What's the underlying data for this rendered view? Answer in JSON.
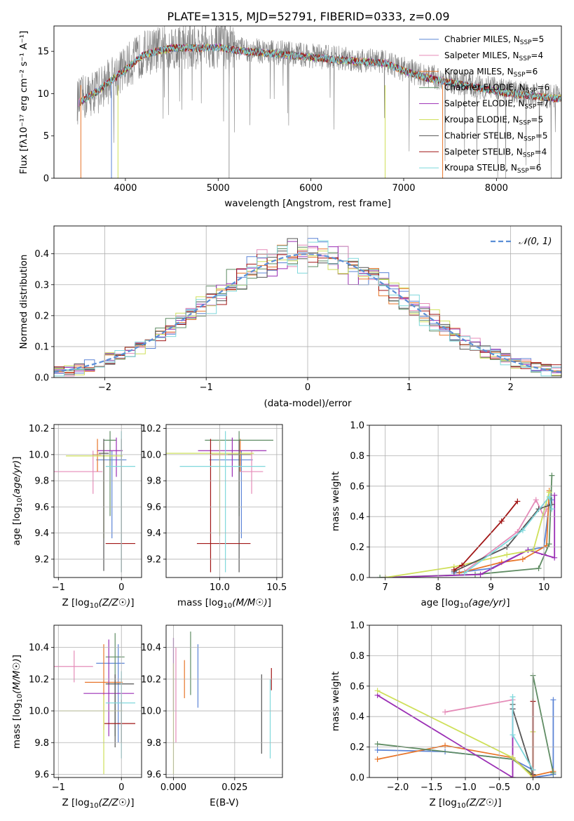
{
  "colors": [
    "#5b84d6",
    "#e58bb8",
    "#e8762b",
    "#5f8c63",
    "#9b2fb5",
    "#cfe05a",
    "#555555",
    "#a11616",
    "#7fd8dc"
  ],
  "chart_data": [
    {
      "id": "spectrum",
      "type": "line",
      "title": "PLATE=1315, MJD=52791, FIBERID=0333, z=0.09",
      "xlabel": "wavelength [Angstrom, rest frame]",
      "ylabel": "Flux [f_λ 10^-17 erg cm^-2 s^-1 A^-1]",
      "xlim": [
        3230,
        8700
      ],
      "ylim": [
        0,
        18
      ],
      "xticks": [
        4000,
        5000,
        6000,
        7000,
        8000
      ],
      "yticks": [
        0,
        5,
        10,
        15
      ],
      "grid": false,
      "legend_position": "right",
      "series": [
        {
          "name": "Chabrier MILES, N_SSP=5"
        },
        {
          "name": "Salpeter MILES, N_SSP=4"
        },
        {
          "name": "Kroupa MILES, N_SSP=6"
        },
        {
          "name": "Chabrier ELODIE, N_SSP=6"
        },
        {
          "name": "Salpeter ELODIE, N_SSP=7"
        },
        {
          "name": "Kroupa ELODIE, N_SSP=5"
        },
        {
          "name": "Chabrier STELIB, N_SSP=5"
        },
        {
          "name": "Salpeter STELIB, N_SSP=4"
        },
        {
          "name": "Kroupa STELIB, N_SSP=6"
        }
      ],
      "continuum": {
        "x": [
          3480,
          3700,
          3900,
          4050,
          4200,
          4500,
          4800,
          5000,
          5200,
          5500,
          5800,
          6000,
          6200,
          6500,
          6800,
          7000,
          7200,
          7500,
          7800,
          8100,
          8400,
          8700
        ],
        "y": [
          9.0,
          10.5,
          12.2,
          13.5,
          14.8,
          15.6,
          15.6,
          15.7,
          15.3,
          15.0,
          14.7,
          14.5,
          14.3,
          14.0,
          13.8,
          12.9,
          12.2,
          11.5,
          10.9,
          10.3,
          9.9,
          9.6
        ]
      }
    },
    {
      "id": "residuals",
      "type": "histogram",
      "xlabel": "(data-model)/error",
      "ylabel": "Normed distribution",
      "xlim": [
        -2.5,
        2.5
      ],
      "ylim": [
        0,
        0.49
      ],
      "xticks": [
        -2,
        -1,
        0,
        1,
        2
      ],
      "yticks": [
        0.0,
        0.1,
        0.2,
        0.3,
        0.4
      ],
      "grid": true,
      "legend": "𝒩(0, 1)",
      "legend_position": "top-right",
      "bin_width": 0.1
    },
    {
      "id": "z-vs-age",
      "type": "scatter",
      "xlabel": "Z [log10(Z/Z☉)]",
      "ylabel": "age [log10(age/yr)]",
      "xlim": [
        -1.07,
        0.32
      ],
      "ylim": [
        9.06,
        10.23
      ],
      "xticks": [
        -1,
        0
      ],
      "yticks": [
        9.2,
        9.4,
        9.6,
        9.8,
        10.0,
        10.2
      ],
      "grid": true,
      "points": [
        {
          "x": -0.15,
          "y": 9.96,
          "xerr": [
            0.25,
            0.23
          ],
          "yerr": [
            0.6,
            0.07
          ]
        },
        {
          "x": -0.45,
          "y": 9.87,
          "xerr": [
            0.65,
            0.15
          ],
          "yerr": [
            0.17,
            0.16
          ]
        },
        {
          "x": -0.38,
          "y": 10.0,
          "xerr": [
            0.08,
            0.06
          ],
          "yerr": [
            0.13,
            0.12
          ]
        },
        {
          "x": -0.18,
          "y": 10.11,
          "xerr": [
            0.1,
            0.1
          ],
          "yerr": [
            0.58,
            0.07
          ]
        },
        {
          "x": -0.08,
          "y": 10.03,
          "xerr": [
            0.3,
            0.1
          ],
          "yerr": [
            0.2,
            0.1
          ]
        },
        {
          "x": -0.28,
          "y": 9.99,
          "xerr": [
            0.6,
            0.3
          ],
          "yerr": [
            0.63,
            0.1
          ]
        },
        {
          "x": -0.28,
          "y": 10.01,
          "xerr": [
            0.08,
            0.08
          ],
          "yerr": [
            0.9,
            0.11
          ]
        },
        {
          "x": 0.0,
          "y": 9.32,
          "xerr": [
            0.25,
            0.22
          ],
          "yerr": [
            0.22,
            0.8
          ]
        },
        {
          "x": 0.0,
          "y": 9.91,
          "xerr": [
            0.25,
            0.22
          ],
          "yerr": [
            0.81,
            0.27
          ]
        }
      ]
    },
    {
      "id": "mass-vs-age",
      "type": "scatter",
      "xlabel": "mass [log10(M/M☉)]",
      "ylabel": "",
      "xlim": [
        9.53,
        10.55
      ],
      "ylim": [
        9.06,
        10.23
      ],
      "xticks": [
        10.0,
        10.5
      ],
      "yticks": [
        9.2,
        9.4,
        9.6,
        9.8,
        10.0,
        10.2
      ],
      "grid": true,
      "points": [
        {
          "x": 10.19,
          "y": 9.96,
          "xerr": [
            0.28,
            0.1
          ],
          "yerr": [
            0.6,
            0.07
          ]
        },
        {
          "x": 10.28,
          "y": 9.87,
          "xerr": [
            0.1,
            0.1
          ],
          "yerr": [
            0.17,
            0.16
          ]
        },
        {
          "x": 10.18,
          "y": 10.0,
          "xerr": [
            0.25,
            0.1
          ],
          "yerr": [
            0.13,
            0.12
          ]
        },
        {
          "x": 10.17,
          "y": 10.11,
          "xerr": [
            0.3,
            0.3
          ],
          "yerr": [
            0.58,
            0.07
          ]
        },
        {
          "x": 10.11,
          "y": 10.03,
          "xerr": [
            0.3,
            0.3
          ],
          "yerr": [
            0.2,
            0.1
          ]
        },
        {
          "x": 10.0,
          "y": 10.01,
          "xerr": [
            0.6,
            0.3
          ],
          "yerr": [
            0.63,
            0.1
          ]
        },
        {
          "x": 10.17,
          "y": 10.0,
          "xerr": [
            0.1,
            0.1
          ],
          "yerr": [
            0.9,
            0.11
          ]
        },
        {
          "x": 9.92,
          "y": 9.32,
          "xerr": [
            0.12,
            0.35
          ],
          "yerr": [
            0.22,
            0.8
          ]
        },
        {
          "x": 10.05,
          "y": 9.91,
          "xerr": [
            0.4,
            0.35
          ],
          "yerr": [
            0.81,
            0.27
          ]
        }
      ]
    },
    {
      "id": "age-vs-weight",
      "type": "line",
      "xlabel": "age  [log10(age/yr)]",
      "ylabel": "mass weight",
      "xlim": [
        6.7,
        10.33
      ],
      "ylim": [
        0,
        1
      ],
      "xticks": [
        7,
        8,
        9,
        10
      ],
      "yticks": [
        0.0,
        0.2,
        0.4,
        0.6,
        0.8,
        1.0
      ],
      "grid": true,
      "series": [
        {
          "x": [
            8.3,
            9.0,
            9.7,
            10.0,
            10.1,
            10.15
          ],
          "y": [
            0.03,
            0.06,
            0.18,
            0.2,
            0.48,
            0.51
          ]
        },
        {
          "x": [
            8.5,
            9.5,
            9.85,
            10.0,
            10.05
          ],
          "y": [
            0.04,
            0.3,
            0.51,
            0.4,
            0.45
          ]
        },
        {
          "x": [
            8.4,
            9.2,
            9.6,
            10.05,
            10.1
          ],
          "y": [
            0.03,
            0.1,
            0.12,
            0.21,
            0.57
          ]
        },
        {
          "x": [
            6.9,
            8.7,
            9.9,
            10.1,
            10.15
          ],
          "y": [
            0.0,
            0.02,
            0.06,
            0.22,
            0.67
          ]
        },
        {
          "x": [
            7.0,
            8.8,
            9.7,
            10.0,
            10.2,
            10.2
          ],
          "y": [
            0.0,
            0.02,
            0.18,
            0.15,
            0.13,
            0.54
          ]
        },
        {
          "x": [
            7.0,
            8.3,
            9.3,
            9.8,
            10.1
          ],
          "y": [
            0.0,
            0.07,
            0.15,
            0.18,
            0.56
          ]
        },
        {
          "x": [
            8.3,
            9.3,
            9.9,
            10.15
          ],
          "y": [
            0.04,
            0.2,
            0.45,
            0.48
          ]
        },
        {
          "x": [
            8.3,
            8.45,
            9.2,
            9.5
          ],
          "y": [
            0.05,
            0.08,
            0.37,
            0.5
          ]
        },
        {
          "x": [
            8.5,
            9.6,
            10.1,
            10.15
          ],
          "y": [
            0.03,
            0.31,
            0.53,
            0.45
          ]
        }
      ]
    },
    {
      "id": "z-vs-mass",
      "type": "scatter",
      "xlabel": "Z [log10(Z/Z☉)]",
      "ylabel": "mass [log10(M/M☉)]",
      "xlim": [
        -1.07,
        0.32
      ],
      "ylim": [
        9.58,
        10.54
      ],
      "xticks": [
        -1,
        0
      ],
      "yticks": [
        9.6,
        9.8,
        10.0,
        10.2,
        10.4
      ],
      "grid": true,
      "points": [
        {
          "x": -0.05,
          "y": 10.3,
          "xerr": [
            0.35,
            0.1
          ],
          "yerr": [
            0.5,
            0.12
          ]
        },
        {
          "x": -0.75,
          "y": 10.28,
          "xerr": [
            0.35,
            0.3
          ],
          "yerr": [
            0.1,
            0.1
          ]
        },
        {
          "x": -0.28,
          "y": 10.18,
          "xerr": [
            0.3,
            0.3
          ],
          "yerr": [
            0.3,
            0.24
          ]
        },
        {
          "x": -0.1,
          "y": 10.34,
          "xerr": [
            0.15,
            0.15
          ],
          "yerr": [
            0.5,
            0.15
          ]
        },
        {
          "x": -0.2,
          "y": 10.11,
          "xerr": [
            0.4,
            0.4
          ],
          "yerr": [
            0.27,
            0.34
          ]
        },
        {
          "x": -0.28,
          "y": 10.0,
          "xerr": [
            0.7,
            0.3
          ],
          "yerr": [
            0.4,
            0.1
          ]
        },
        {
          "x": -0.1,
          "y": 10.17,
          "xerr": [
            0.15,
            0.3
          ],
          "yerr": [
            0.4,
            0.06
          ]
        },
        {
          "x": 0.0,
          "y": 9.92,
          "xerr": [
            0.27,
            0.22
          ],
          "yerr": [
            0.12,
            0.15
          ]
        },
        {
          "x": 0.0,
          "y": 10.05,
          "xerr": [
            0.25,
            0.22
          ],
          "yerr": [
            0.35,
            0.2
          ]
        }
      ]
    },
    {
      "id": "ebv-vs-mass",
      "type": "scatter",
      "xlabel": "E(B-V)",
      "ylabel": "",
      "xlim": [
        -0.003,
        0.0445
      ],
      "ylim": [
        9.58,
        10.54
      ],
      "xticks": [
        0.0,
        0.025
      ],
      "tick_labels": [
        "0.000",
        "0.025"
      ],
      "yticks": [
        9.6,
        9.8,
        10.0,
        10.2,
        10.4
      ],
      "grid": true,
      "points": [
        {
          "x": 0.01,
          "y": 10.22,
          "yerr": [
            0.2,
            0.2
          ]
        },
        {
          "x": 0.001,
          "y": 10.1,
          "yerr": [
            0.3,
            0.3
          ]
        },
        {
          "x": 0.0045,
          "y": 10.2,
          "yerr": [
            0.12,
            0.12
          ]
        },
        {
          "x": 0.007,
          "y": 10.3,
          "yerr": [
            0.2,
            0.2
          ]
        },
        {
          "x": 0.0,
          "y": 10.23,
          "yerr": [
            0.23,
            0.23
          ]
        },
        {
          "x": 0.0,
          "y": 9.95,
          "yerr": [
            0.35,
            0.35
          ]
        },
        {
          "x": 0.036,
          "y": 9.98,
          "yerr": [
            0.25,
            0.25
          ]
        },
        {
          "x": 0.04,
          "y": 10.2,
          "yerr": [
            0.07,
            0.07
          ]
        },
        {
          "x": 0.0395,
          "y": 9.95,
          "yerr": [
            0.25,
            0.25
          ]
        }
      ]
    },
    {
      "id": "z-vs-weight",
      "type": "line",
      "xlabel": "Z [log10(Z/Z☉)]",
      "ylabel": "mass weight",
      "xlim": [
        -2.42,
        0.42
      ],
      "ylim": [
        0,
        1
      ],
      "xticks": [
        -2.0,
        -1.5,
        -1.0,
        -0.5,
        0.0
      ],
      "yticks": [
        0.0,
        0.2,
        0.4,
        0.6,
        0.8,
        1.0
      ],
      "grid": true,
      "series": [
        {
          "x": [
            -2.3,
            -1.3,
            -0.3,
            0.0,
            0.0,
            0.3,
            0.3
          ],
          "y": [
            0.18,
            0.17,
            0.12,
            0.05,
            0.0,
            0.02,
            0.51
          ]
        },
        {
          "x": [
            -1.3,
            -0.3,
            -0.3
          ],
          "y": [
            0.43,
            0.51,
            0.0
          ]
        },
        {
          "x": [
            -2.3,
            -1.3,
            -0.3,
            0.0,
            0.3
          ],
          "y": [
            0.12,
            0.21,
            0.13,
            0.01,
            0.04
          ]
        },
        {
          "x": [
            -2.3,
            -0.3,
            0.0,
            0.0,
            0.3
          ],
          "y": [
            0.22,
            0.12,
            0.02,
            0.67,
            0.03
          ]
        },
        {
          "x": [
            -2.3,
            -0.3,
            -0.3
          ],
          "y": [
            0.54,
            0.0,
            0.45
          ]
        },
        {
          "x": [
            -2.3,
            -0.3,
            0.0,
            0.0
          ],
          "y": [
            0.57,
            0.13,
            0.0,
            0.3
          ]
        },
        {
          "x": [
            -0.3,
            -0.3,
            0.0
          ],
          "y": [
            0.48,
            0.45,
            0.02
          ]
        },
        {
          "x": [
            0.0,
            0.0
          ],
          "y": [
            0.5,
            0.0
          ]
        },
        {
          "x": [
            -0.3,
            -0.3,
            0.0
          ],
          "y": [
            0.53,
            0.28,
            0.05
          ]
        }
      ]
    }
  ]
}
